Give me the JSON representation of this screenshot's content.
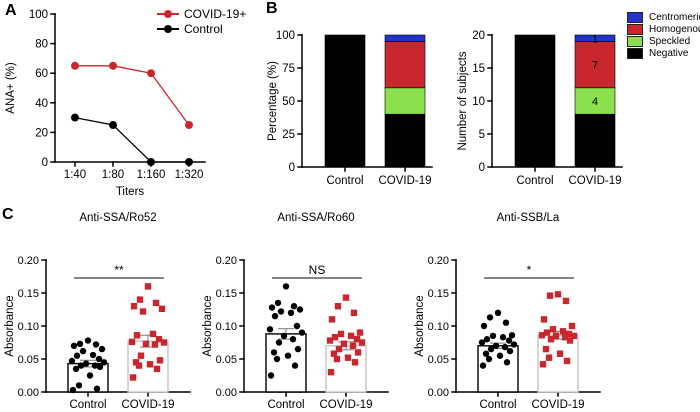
{
  "panels": {
    "A": {
      "label": "A",
      "legend": [
        {
          "label": "COVID-19+",
          "color": "#C8282D"
        },
        {
          "label": "Control",
          "color": "#000000"
        }
      ]
    },
    "B": {
      "label": "B",
      "legend": [
        {
          "label": "Centromeric",
          "color": "#2332C8"
        },
        {
          "label": "Homogenous",
          "color": "#C8282D"
        },
        {
          "label": "Speckled",
          "color": "#8BE04E"
        },
        {
          "label": "Negative",
          "color": "#000000"
        }
      ]
    },
    "C": {
      "label": "C"
    }
  },
  "chart_data": [
    {
      "id": "ana-titers",
      "type": "line",
      "title": "",
      "xlabel": "Titers",
      "ylabel": "ANA+ (%)",
      "ylim": [
        0,
        100
      ],
      "yticks": [
        0,
        20,
        40,
        60,
        80,
        100
      ],
      "ytick_labels": [
        "0",
        "20",
        "40",
        "60",
        "80",
        "100"
      ],
      "categories": [
        "1:40",
        "1:80",
        "1:160",
        "1:320"
      ],
      "legend_position": "top-right",
      "series": [
        {
          "name": "COVID-19+",
          "color": "#C8282D",
          "marker": "circle",
          "values": [
            65,
            65,
            60,
            25
          ]
        },
        {
          "name": "Control",
          "color": "#000000",
          "marker": "circle",
          "values": [
            30,
            25,
            0,
            0
          ]
        }
      ]
    },
    {
      "id": "ana-pattern-percentage",
      "type": "bar",
      "stacked": true,
      "title": "",
      "ylabel": "Percentage (%)",
      "ylim": [
        0,
        100
      ],
      "yticks": [
        0,
        25,
        50,
        75,
        100
      ],
      "ytick_labels": [
        "0",
        "25",
        "50",
        "75",
        "100"
      ],
      "categories": [
        "Control",
        "COVID-19"
      ],
      "series": [
        {
          "name": "Negative",
          "color": "#000000",
          "values": [
            100,
            40
          ],
          "bar_labels": [
            "",
            ""
          ]
        },
        {
          "name": "Speckled",
          "color": "#8BE04E",
          "values": [
            0,
            20
          ],
          "bar_labels": [
            "",
            ""
          ]
        },
        {
          "name": "Homogenous",
          "color": "#C8282D",
          "values": [
            0,
            35
          ],
          "bar_labels": [
            "",
            ""
          ]
        },
        {
          "name": "Centromeric",
          "color": "#2332C8",
          "values": [
            0,
            5
          ],
          "bar_labels": [
            "",
            ""
          ]
        }
      ]
    },
    {
      "id": "ana-pattern-subjects",
      "type": "bar",
      "stacked": true,
      "title": "",
      "ylabel": "Number of subjects",
      "ylim": [
        0,
        20
      ],
      "yticks": [
        0,
        5,
        10,
        15,
        20
      ],
      "ytick_labels": [
        "0",
        "5",
        "10",
        "15",
        "20"
      ],
      "categories": [
        "Control",
        "COVID-19"
      ],
      "series": [
        {
          "name": "Negative",
          "color": "#000000",
          "values": [
            20,
            8
          ],
          "bar_labels": [
            "20",
            "8"
          ]
        },
        {
          "name": "Speckled",
          "color": "#8BE04E",
          "values": [
            0,
            4
          ],
          "bar_labels": [
            "",
            "4"
          ]
        },
        {
          "name": "Homogenous",
          "color": "#C8282D",
          "values": [
            0,
            7
          ],
          "bar_labels": [
            "",
            "7"
          ]
        },
        {
          "name": "Centromeric",
          "color": "#2332C8",
          "values": [
            0,
            1
          ],
          "bar_labels": [
            "",
            "1"
          ]
        }
      ]
    },
    {
      "id": "anti-ssa-ro52",
      "type": "scatter_bar",
      "title": "Anti-SSA/Ro52",
      "ylabel": "Absorbance",
      "ylim": [
        0,
        0.2
      ],
      "yticks": [
        0,
        0.05,
        0.1,
        0.15,
        0.2
      ],
      "ytick_labels": [
        "0.00",
        "0.05",
        "0.10",
        "0.15",
        "0.20"
      ],
      "significance": "**",
      "categories": [
        "Control",
        "COVID-19"
      ],
      "groups": [
        {
          "name": "Control",
          "color": "#000000",
          "marker": "circle",
          "mean": 0.043,
          "sem": 0.005,
          "points": [
            0.078,
            0.073,
            0.072,
            0.07,
            0.065,
            0.062,
            0.056,
            0.055,
            0.05,
            0.047,
            0.045,
            0.043,
            0.04,
            0.04,
            0.038,
            0.035,
            0.025,
            0.01,
            0.005,
            0.003
          ]
        },
        {
          "name": "COVID-19",
          "color": "#C8282D",
          "marker": "square",
          "mean": 0.077,
          "sem": 0.009,
          "points": [
            0.16,
            0.14,
            0.135,
            0.13,
            0.126,
            0.122,
            0.088,
            0.086,
            0.08,
            0.076,
            0.075,
            0.073,
            0.072,
            0.055,
            0.048,
            0.045,
            0.042,
            0.04,
            0.035,
            0.022
          ]
        }
      ]
    },
    {
      "id": "anti-ssa-ro60",
      "type": "scatter_bar",
      "title": "Anti-SSA/Ro60",
      "ylabel": "Absorbance",
      "ylim": [
        0,
        0.2
      ],
      "yticks": [
        0,
        0.05,
        0.1,
        0.15,
        0.2
      ],
      "ytick_labels": [
        "0.00",
        "0.05",
        "0.10",
        "0.15",
        "0.20"
      ],
      "significance": "NS",
      "categories": [
        "Control",
        "COVID-19"
      ],
      "groups": [
        {
          "name": "Control",
          "color": "#000000",
          "marker": "circle",
          "mean": 0.088,
          "sem": 0.008,
          "points": [
            0.16,
            0.135,
            0.13,
            0.128,
            0.125,
            0.122,
            0.12,
            0.115,
            0.1,
            0.095,
            0.09,
            0.085,
            0.08,
            0.075,
            0.065,
            0.06,
            0.055,
            0.05,
            0.04,
            0.025
          ]
        },
        {
          "name": "COVID-19",
          "color": "#C8282D",
          "marker": "square",
          "mean": 0.07,
          "sem": 0.006,
          "points": [
            0.143,
            0.13,
            0.12,
            0.11,
            0.09,
            0.088,
            0.085,
            0.083,
            0.08,
            0.078,
            0.075,
            0.073,
            0.07,
            0.065,
            0.06,
            0.058,
            0.052,
            0.05,
            0.045,
            0.03
          ]
        }
      ]
    },
    {
      "id": "anti-ssb-la",
      "type": "scatter_bar",
      "title": "Anti-SSB/La",
      "ylabel": "Absorbance",
      "ylim": [
        0,
        0.2
      ],
      "yticks": [
        0,
        0.05,
        0.1,
        0.15,
        0.2
      ],
      "ytick_labels": [
        "0.00",
        "0.05",
        "0.10",
        "0.15",
        "0.20"
      ],
      "significance": "*",
      "categories": [
        "Control",
        "COVID-19"
      ],
      "groups": [
        {
          "name": "Control",
          "color": "#000000",
          "marker": "circle",
          "mean": 0.07,
          "sem": 0.004,
          "points": [
            0.12,
            0.113,
            0.105,
            0.1,
            0.086,
            0.085,
            0.083,
            0.08,
            0.078,
            0.075,
            0.072,
            0.07,
            0.068,
            0.065,
            0.062,
            0.058,
            0.055,
            0.05,
            0.045,
            0.04
          ]
        },
        {
          "name": "COVID-19",
          "color": "#C8282D",
          "marker": "square",
          "mean": 0.086,
          "sem": 0.006,
          "points": [
            0.148,
            0.146,
            0.138,
            0.11,
            0.1,
            0.095,
            0.092,
            0.09,
            0.088,
            0.086,
            0.085,
            0.085,
            0.083,
            0.08,
            0.078,
            0.065,
            0.058,
            0.052,
            0.047,
            0.042
          ]
        }
      ]
    }
  ]
}
